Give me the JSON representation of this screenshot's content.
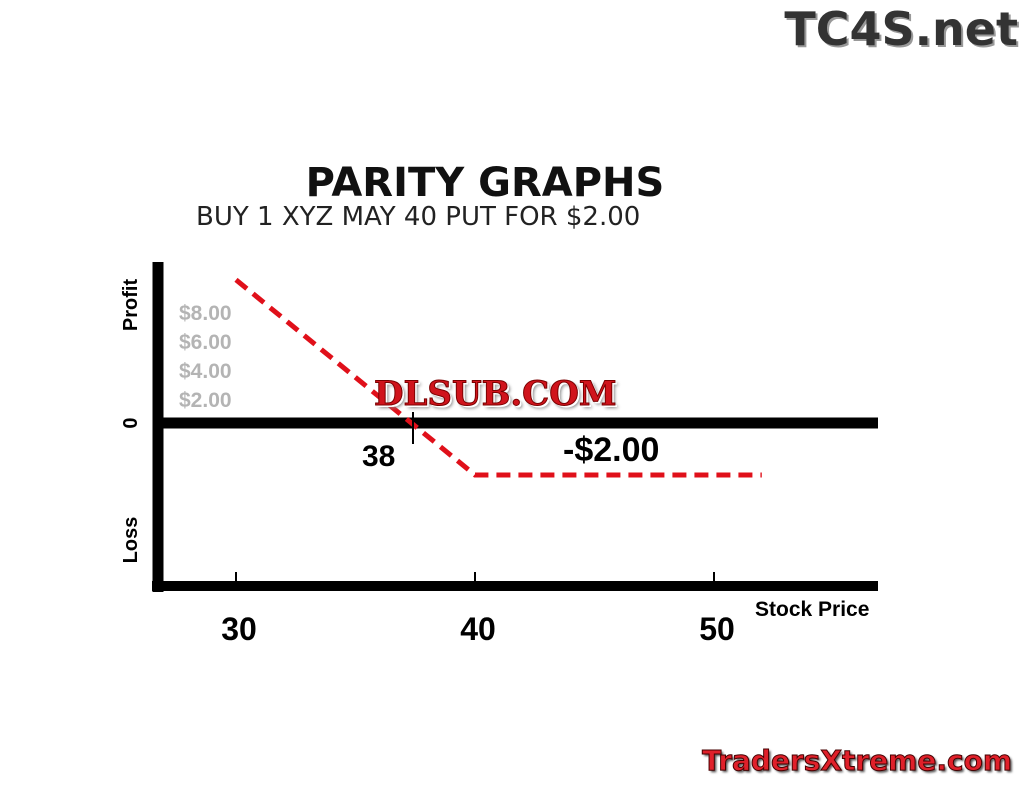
{
  "watermarks": {
    "top_right": "TC4S.net",
    "center": "DLSUB.COM",
    "bottom_right": "TradersXtreme.com"
  },
  "chart_data": {
    "type": "line",
    "title": "PARITY GRAPHS",
    "subtitle": "BUY 1 XYZ MAY 40 PUT  FOR  $2.00",
    "xlabel": "Stock Price",
    "ylabel_top": "Profit",
    "ylabel_bottom": "Loss",
    "y_zero_label": "0",
    "x_ticks": [
      30,
      40,
      50
    ],
    "y_tick_labels": [
      "$8.00",
      "$6.00",
      "$4.00",
      "$2.00"
    ],
    "series": [
      {
        "points": [
          [
            30,
            8
          ],
          [
            40,
            -2
          ],
          [
            52,
            -2
          ]
        ],
        "color": "#e0101a",
        "style": "dashed"
      }
    ],
    "annotations": {
      "breakeven": "38",
      "max_loss": "-$2.00"
    },
    "grid": false
  }
}
